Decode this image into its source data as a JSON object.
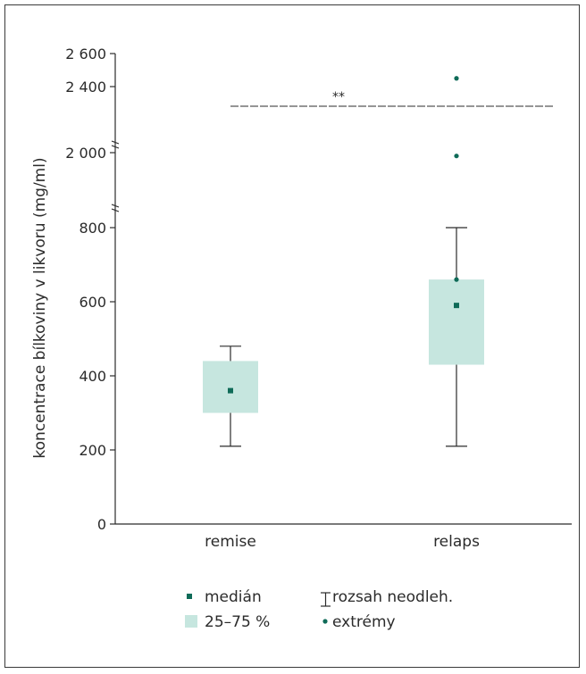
{
  "chart_data": {
    "type": "box",
    "ylabel": "koncentrace bílkoviny v likvoru (mg/ml)",
    "xlabel": "",
    "y_axis_break": true,
    "y_segments": [
      {
        "range": [
          0,
          800
        ],
        "ticks": [
          0,
          200,
          400,
          600,
          800
        ]
      },
      {
        "range": [
          2000,
          2600
        ],
        "ticks": [
          2000,
          2400,
          2600
        ]
      }
    ],
    "tick_labels": {
      "0": "0",
      "200": "200",
      "400": "400",
      "600": "600",
      "800": "800",
      "2000": "2 000",
      "2400": "2 400",
      "2600": "2 600"
    },
    "categories": [
      "remise",
      "relaps"
    ],
    "boxes": [
      {
        "category": "remise",
        "min": 210,
        "q1": 300,
        "median": 360,
        "q3": 440,
        "max": 480,
        "extremes": []
      },
      {
        "category": "relaps",
        "min": 210,
        "q1": 430,
        "median": 590,
        "q3": 660,
        "max": 800,
        "extremes": [
          660,
          1980,
          2450
        ]
      }
    ],
    "significance": {
      "label": "**",
      "from": "remise",
      "to": "relaps",
      "style": "dashed"
    },
    "legend": {
      "median": "medián",
      "range": "rozsah neodleh.",
      "iqr": "25–75 %",
      "extremes": "extrémy"
    },
    "colors": {
      "box_fill": "#c6e6df",
      "median_marker": "#0f6b58",
      "extreme_marker": "#0f6b58",
      "axis": "#2b2b2b"
    }
  }
}
